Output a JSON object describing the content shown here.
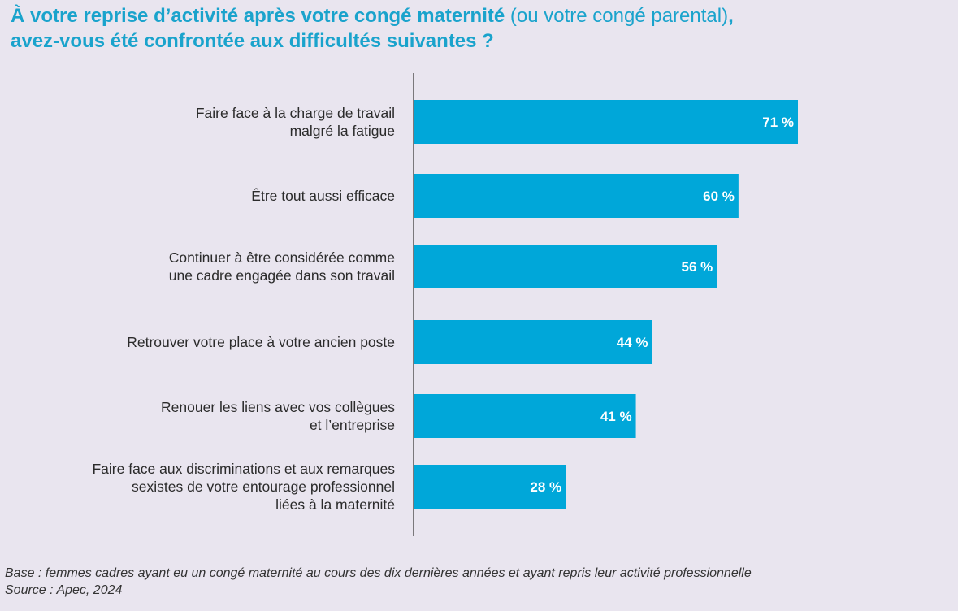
{
  "title": {
    "part1": "À votre reprise d’activité après votre congé maternité",
    "part2": " (ou votre congé parental)",
    "part3": ",",
    "line2": "avez-vous été confrontée aux difficultés suivantes ?"
  },
  "colors": {
    "bar": "#00a7d9",
    "title": "#1aa3cc",
    "axis": "#555555"
  },
  "chart_data": {
    "type": "bar",
    "orientation": "horizontal",
    "categories": [
      [
        "Faire face à la charge de travail",
        "malgré la fatigue"
      ],
      [
        "Être tout aussi efficace"
      ],
      [
        "Continuer à être considérée comme",
        "une cadre engagée dans son travail"
      ],
      [
        "Retrouver votre place à votre ancien poste"
      ],
      [
        "Renouer les liens avec vos collègues",
        "et l’entreprise"
      ],
      [
        "Faire face aux discriminations et aux remarques",
        "sexistes de votre entourage professionnel",
        "liées à la maternité"
      ]
    ],
    "values": [
      71,
      60,
      56,
      44,
      41,
      28
    ],
    "value_labels": [
      "71 %",
      "60 %",
      "56 %",
      "44 %",
      "41 %",
      "28 %"
    ],
    "xlim": [
      0,
      100
    ],
    "grid": false,
    "legend": "none"
  },
  "footer": {
    "base": "Base : femmes cadres ayant eu un congé maternité au cours des dix dernières années et ayant repris leur activité professionnelle",
    "source": "Source : Apec, 2024"
  }
}
